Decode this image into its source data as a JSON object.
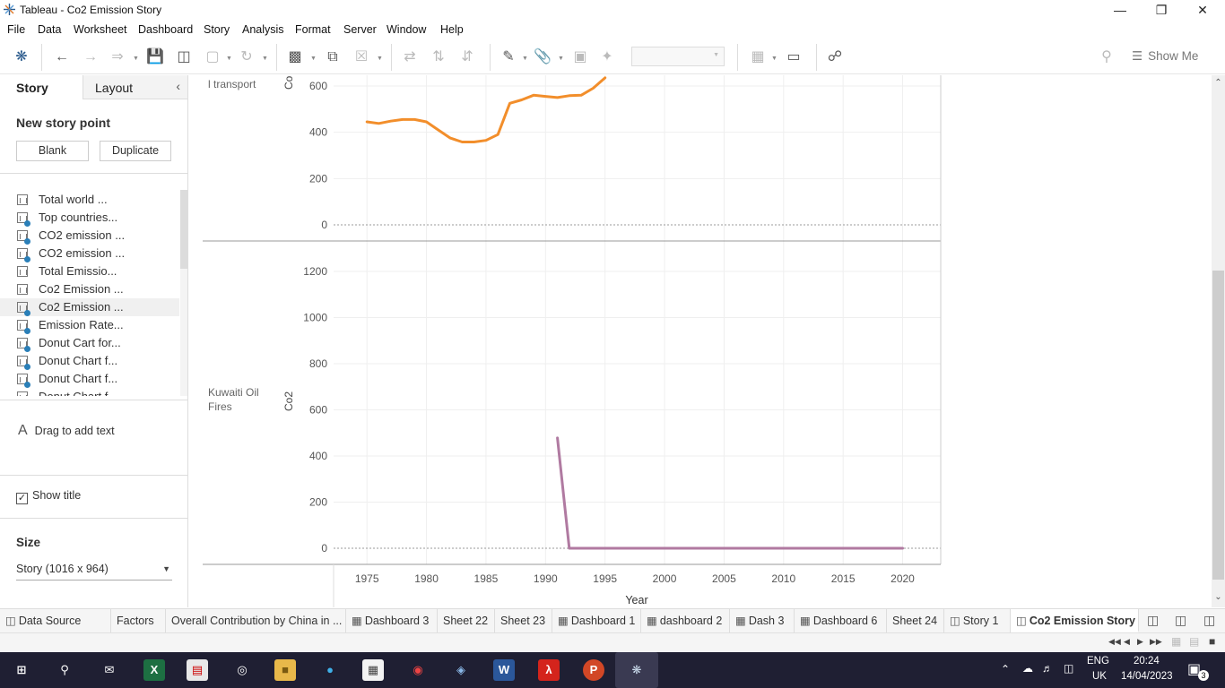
{
  "window": {
    "title": "Tableau - Co2 Emission Story"
  },
  "menu": [
    "File",
    "Data",
    "Worksheet",
    "Dashboard",
    "Story",
    "Analysis",
    "Format",
    "Server",
    "Window",
    "Help"
  ],
  "toolbar": {
    "show_me": "Show Me"
  },
  "left_pane": {
    "tab_story": "Story",
    "tab_layout": "Layout",
    "new_story_point": "New story point",
    "blank_btn": "Blank",
    "duplicate_btn": "Duplicate",
    "sheets": [
      {
        "label": "Total world ...",
        "checked": false
      },
      {
        "label": "Top  countries...",
        "checked": true
      },
      {
        "label": "CO2 emission ...",
        "checked": true
      },
      {
        "label": "CO2 emission ...",
        "checked": true
      },
      {
        "label": "Total Emissio...",
        "checked": false
      },
      {
        "label": "Co2 Emission ...",
        "checked": false
      },
      {
        "label": "Co2 Emission ...",
        "checked": true
      },
      {
        "label": "Emission Rate...",
        "checked": true
      },
      {
        "label": "Donut Cart for...",
        "checked": true
      },
      {
        "label": "Donut Chart f...",
        "checked": true
      },
      {
        "label": "Donut Chart f...",
        "checked": true
      },
      {
        "label": "Donut Chart f...",
        "checked": false
      }
    ],
    "drag_text": "Drag to add text",
    "show_title": "Show title",
    "size_header": "Size",
    "size_value": "Story (1016 x 964)"
  },
  "chart_data": [
    {
      "type": "line",
      "row_label": "Internationa l transport",
      "ylabel": "Co2",
      "ylim": [
        -70,
        650
      ],
      "yticks": [
        "0",
        "200",
        "400",
        "600"
      ],
      "color": "#f28e2b",
      "x": [
        1975,
        1976,
        1977,
        1978,
        1979,
        1980,
        1981,
        1982,
        1983,
        1984,
        1985,
        1986,
        1987,
        1988,
        1989,
        1990,
        1991,
        1992,
        1993,
        1994,
        1995
      ],
      "values": [
        445,
        438,
        448,
        455,
        455,
        445,
        410,
        375,
        358,
        358,
        365,
        390,
        525,
        540,
        560,
        555,
        550,
        558,
        560,
        590,
        635
      ]
    },
    {
      "type": "line",
      "row_label": "Kuwaiti Oil Fires",
      "ylabel": "Co2",
      "ylim": [
        -70,
        1300
      ],
      "yticks": [
        "0",
        "200",
        "400",
        "600",
        "800",
        "1000",
        "1200"
      ],
      "color": "#b07aa1",
      "x": [
        1991,
        1992,
        1993,
        2000,
        2005,
        2010,
        2015,
        2020
      ],
      "values": [
        478,
        0,
        0,
        0,
        0,
        0,
        0,
        0
      ]
    }
  ],
  "x_axis": {
    "label": "Year",
    "ticks": [
      "1975",
      "1980",
      "1985",
      "1990",
      "1995",
      "2000",
      "2005",
      "2010",
      "2015",
      "2020"
    ],
    "xlim": [
      1972.2,
      2023.2
    ]
  },
  "sheet_tabs": [
    {
      "label": "Data Source",
      "icon": "database-icon"
    },
    {
      "label": "Factors",
      "icon": ""
    },
    {
      "label": "Overall Contribution by China in ...",
      "icon": ""
    },
    {
      "label": "Dashboard 3",
      "icon": "dashboard-icon"
    },
    {
      "label": "Sheet 22",
      "icon": ""
    },
    {
      "label": "Sheet 23",
      "icon": ""
    },
    {
      "label": "Dashboard 1",
      "icon": "dashboard-icon"
    },
    {
      "label": "dashboard 2",
      "icon": "dashboard-icon"
    },
    {
      "label": "Dash 3",
      "icon": "dashboard-icon"
    },
    {
      "label": "Dashboard 6",
      "icon": "dashboard-icon"
    },
    {
      "label": "Sheet 24",
      "icon": ""
    },
    {
      "label": "Story 1",
      "icon": "story-icon"
    },
    {
      "label": "Co2 Emission Story",
      "icon": "story-icon"
    }
  ],
  "taskbar": {
    "lang": "ENG",
    "region": "UK",
    "time": "20:24",
    "date": "14/04/2023",
    "notifications": "3"
  }
}
